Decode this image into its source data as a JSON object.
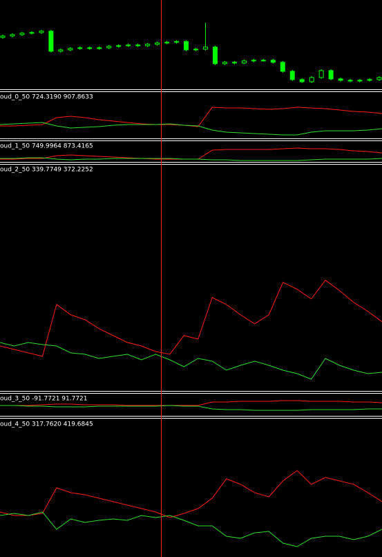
{
  "chart_data": [
    {
      "type": "candlestick",
      "ylim": [
        0,
        128
      ],
      "up_color": "#00ff00",
      "down_color": "#00ff00",
      "open": [
        74,
        76,
        78,
        80,
        81,
        83,
        54,
        56,
        58,
        59,
        58,
        59,
        61,
        62,
        63,
        62,
        64,
        66,
        67,
        68,
        56,
        57,
        60,
        36,
        38,
        37,
        40,
        41,
        41,
        38,
        25,
        13,
        10,
        16,
        26,
        14,
        12,
        11,
        12,
        13
      ],
      "high": [
        78,
        80,
        82,
        83,
        85,
        85,
        58,
        60,
        61,
        61,
        61,
        63,
        64,
        65,
        65,
        66,
        68,
        69,
        70,
        70,
        59,
        95,
        62,
        40,
        40,
        42,
        43,
        43,
        43,
        40,
        27,
        15,
        18,
        28,
        28,
        16,
        14,
        14,
        15,
        18
      ],
      "low": [
        72,
        74,
        76,
        78,
        79,
        52,
        52,
        54,
        56,
        56,
        56,
        57,
        59,
        60,
        60,
        60,
        62,
        64,
        65,
        54,
        54,
        55,
        34,
        34,
        35,
        35,
        38,
        39,
        36,
        23,
        11,
        8,
        8,
        14,
        12,
        10,
        9,
        9,
        10,
        11
      ],
      "close": [
        76,
        78,
        80,
        81,
        83,
        54,
        56,
        58,
        59,
        58,
        59,
        61,
        62,
        63,
        62,
        64,
        66,
        67,
        68,
        56,
        57,
        60,
        36,
        38,
        37,
        40,
        41,
        41,
        38,
        25,
        13,
        10,
        16,
        26,
        14,
        12,
        11,
        12,
        13,
        16
      ]
    },
    {
      "type": "line",
      "title": "oud_0_50 724.3190 907.8633",
      "ylim": [
        0,
        67
      ],
      "series": [
        {
          "color": "#ff1a1a",
          "values": [
            18,
            18,
            19,
            20,
            30,
            32,
            30,
            27,
            25,
            23,
            21,
            20,
            20,
            19,
            17,
            45,
            44,
            44,
            43,
            42,
            43,
            45,
            44,
            43,
            41,
            39,
            38,
            36
          ]
        },
        {
          "color": "#33dd33",
          "values": [
            20,
            21,
            22,
            23,
            18,
            15,
            16,
            17,
            19,
            20,
            20,
            20,
            21,
            19,
            18,
            12,
            9,
            8,
            7,
            6,
            5,
            5,
            9,
            11,
            11,
            11,
            12,
            14
          ]
        }
      ]
    },
    {
      "type": "line",
      "title": "oud_1_50 749.9964 873.4165",
      "ylim": [
        0,
        29
      ],
      "series": [
        {
          "color": "#ff1a1a",
          "values": [
            3,
            3,
            4,
            4,
            8,
            9,
            8,
            7,
            6,
            5,
            4,
            3,
            3,
            3,
            3,
            16,
            17,
            17,
            17,
            17,
            18,
            19,
            18,
            18,
            17,
            15,
            14,
            12
          ]
        },
        {
          "color": "#33dd33",
          "values": [
            4,
            4,
            5,
            5,
            3,
            2,
            3,
            3,
            4,
            4,
            4,
            4,
            4,
            3,
            3,
            2,
            2,
            1,
            1,
            1,
            1,
            1,
            2,
            3,
            3,
            3,
            3,
            4
          ]
        }
      ]
    },
    {
      "type": "line",
      "title": "oud_2_50 339.7749 372.2252",
      "ylim": [
        0,
        327
      ],
      "series": [
        {
          "color": "#ff1a1a",
          "values": [
            65,
            60,
            55,
            50,
            125,
            110,
            103,
            90,
            80,
            70,
            65,
            57,
            53,
            80,
            75,
            135,
            125,
            110,
            97,
            110,
            157,
            147,
            133,
            160,
            145,
            128,
            115,
            100
          ]
        },
        {
          "color": "#33dd33",
          "values": [
            70,
            65,
            70,
            67,
            65,
            55,
            53,
            47,
            50,
            53,
            45,
            53,
            45,
            35,
            47,
            43,
            30,
            37,
            43,
            37,
            30,
            25,
            17,
            47,
            37,
            30,
            25,
            27
          ]
        }
      ]
    },
    {
      "type": "line",
      "title": "oud_3_50 -91.7721 91.7721",
      "ylim": [
        0,
        32
      ],
      "series": [
        {
          "color": "#ff1a1a",
          "values": [
            15,
            15,
            15,
            16,
            17,
            17,
            16,
            16,
            16,
            15,
            15,
            15,
            15,
            15,
            15,
            20,
            20,
            21,
            21,
            21,
            22,
            22,
            21,
            21,
            21,
            20,
            20,
            19
          ]
        },
        {
          "color": "#33dd33",
          "values": [
            15,
            15,
            14,
            14,
            13,
            13,
            13,
            14,
            14,
            14,
            14,
            14,
            15,
            14,
            14,
            10,
            9,
            9,
            8,
            8,
            8,
            8,
            9,
            9,
            9,
            9,
            10,
            10
          ]
        }
      ]
    },
    {
      "type": "line",
      "title": "oud_4_50 317.7620 419.6845",
      "ylim": [
        0,
        199
      ],
      "series": [
        {
          "color": "#ff1a1a",
          "values": [
            65,
            60,
            60,
            63,
            100,
            93,
            90,
            85,
            80,
            75,
            70,
            65,
            57,
            63,
            70,
            85,
            113,
            105,
            93,
            87,
            110,
            125,
            105,
            115,
            110,
            105,
            93,
            80
          ]
        },
        {
          "color": "#33dd33",
          "values": [
            60,
            63,
            60,
            65,
            40,
            55,
            50,
            53,
            55,
            53,
            60,
            57,
            60,
            53,
            45,
            45,
            30,
            27,
            35,
            37,
            20,
            15,
            27,
            30,
            30,
            25,
            30,
            40
          ]
        }
      ]
    }
  ]
}
